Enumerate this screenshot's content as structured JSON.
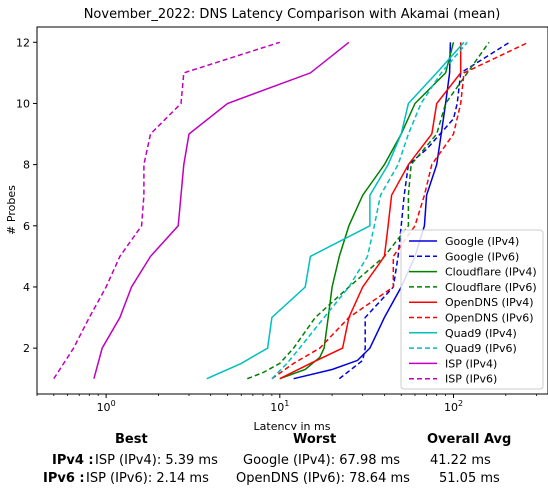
{
  "chart_data": {
    "type": "line",
    "title": "November_2022: DNS Latency Comparison with Akamai (mean)",
    "xlabel": "Latency in ms",
    "ylabel": "# Probes",
    "xscale": "log",
    "xlim": [
      0.4,
      350
    ],
    "ylim": [
      0.5,
      12.5
    ],
    "xticks": [
      {
        "value": 1,
        "label": "10",
        "sup": "0"
      },
      {
        "value": 10,
        "label": "10",
        "sup": "1"
      },
      {
        "value": 100,
        "label": "10",
        "sup": "2"
      }
    ],
    "yticks": [
      2,
      4,
      6,
      8,
      10,
      12
    ],
    "legend_placement": "lower-right",
    "series": [
      {
        "name": "Google (IPv4)",
        "color": "#0000dd",
        "dash": "solid",
        "points": [
          [
            12,
            1
          ],
          [
            20,
            1.3
          ],
          [
            28,
            1.6
          ],
          [
            33,
            2
          ],
          [
            40,
            3
          ],
          [
            50,
            4
          ],
          [
            60,
            5
          ],
          [
            68,
            6
          ],
          [
            70,
            7
          ],
          [
            80,
            8
          ],
          [
            85,
            9
          ],
          [
            90,
            10
          ],
          [
            95,
            11
          ],
          [
            96,
            12
          ]
        ]
      },
      {
        "name": "Google (IPv6)",
        "color": "#0000dd",
        "dash": "dashed",
        "points": [
          [
            22,
            1
          ],
          [
            30,
            1.6
          ],
          [
            31,
            2
          ],
          [
            31,
            3
          ],
          [
            45,
            4
          ],
          [
            48,
            5
          ],
          [
            50,
            6
          ],
          [
            52,
            7
          ],
          [
            55,
            8
          ],
          [
            70,
            8.5
          ],
          [
            100,
            9.5
          ],
          [
            105,
            10
          ],
          [
            110,
            11
          ],
          [
            210,
            12
          ]
        ]
      },
      {
        "name": "Cloudflare (IPv4)",
        "color": "#008000",
        "dash": "solid",
        "points": [
          [
            10,
            1
          ],
          [
            14,
            1.3
          ],
          [
            17,
            1.7
          ],
          [
            18,
            2
          ],
          [
            19,
            3
          ],
          [
            20,
            4
          ],
          [
            22,
            5
          ],
          [
            25,
            6
          ],
          [
            30,
            7
          ],
          [
            40,
            8
          ],
          [
            50,
            9
          ],
          [
            60,
            10
          ],
          [
            90,
            11
          ],
          [
            100,
            12
          ]
        ]
      },
      {
        "name": "Cloudflare (IPv6)",
        "color": "#008000",
        "dash": "dashed",
        "points": [
          [
            6.5,
            1
          ],
          [
            8,
            1.2
          ],
          [
            10,
            1.5
          ],
          [
            12,
            2
          ],
          [
            16,
            3
          ],
          [
            25,
            4
          ],
          [
            40,
            5
          ],
          [
            55,
            6
          ],
          [
            55,
            7
          ],
          [
            57,
            8
          ],
          [
            80,
            9
          ],
          [
            90,
            10
          ],
          [
            120,
            11
          ],
          [
            160,
            12
          ]
        ]
      },
      {
        "name": "OpenDNS (IPv4)",
        "color": "#ff0000",
        "dash": "solid",
        "points": [
          [
            10,
            1
          ],
          [
            15,
            1.5
          ],
          [
            23,
            2
          ],
          [
            25,
            3
          ],
          [
            30,
            4
          ],
          [
            40,
            5
          ],
          [
            42,
            6
          ],
          [
            44,
            7
          ],
          [
            55,
            8
          ],
          [
            75,
            9
          ],
          [
            80,
            10
          ],
          [
            110,
            11
          ],
          [
            110,
            12
          ]
        ]
      },
      {
        "name": "OpenDNS (IPv6)",
        "color": "#ff0000",
        "dash": "dashed",
        "points": [
          [
            9,
            1
          ],
          [
            12,
            1.5
          ],
          [
            17,
            2
          ],
          [
            25,
            3
          ],
          [
            45,
            4
          ],
          [
            45,
            5
          ],
          [
            60,
            6
          ],
          [
            68,
            7
          ],
          [
            75,
            8
          ],
          [
            100,
            9
          ],
          [
            110,
            10
          ],
          [
            115,
            11
          ],
          [
            270,
            12
          ]
        ]
      },
      {
        "name": "Quad9 (IPv4)",
        "color": "#00bfbf",
        "dash": "solid",
        "points": [
          [
            3.8,
            1
          ],
          [
            6,
            1.5
          ],
          [
            8.5,
            2
          ],
          [
            9,
            3
          ],
          [
            14,
            4
          ],
          [
            15,
            5
          ],
          [
            33,
            6
          ],
          [
            33,
            7
          ],
          [
            42,
            8
          ],
          [
            50,
            9
          ],
          [
            55,
            10
          ],
          [
            80,
            11
          ],
          [
            115,
            12
          ]
        ]
      },
      {
        "name": "Quad9 (IPv6)",
        "color": "#00bfbf",
        "dash": "dashed",
        "points": [
          [
            9,
            1
          ],
          [
            11,
            1.5
          ],
          [
            13,
            2
          ],
          [
            18,
            3
          ],
          [
            25,
            4
          ],
          [
            32,
            5
          ],
          [
            35,
            6
          ],
          [
            38,
            7
          ],
          [
            48,
            8
          ],
          [
            55,
            9
          ],
          [
            65,
            10
          ],
          [
            85,
            11
          ],
          [
            120,
            12
          ]
        ]
      },
      {
        "name": "ISP (IPv4)",
        "color": "#bf00bf",
        "dash": "solid",
        "points": [
          [
            0.85,
            1
          ],
          [
            0.95,
            2
          ],
          [
            1.2,
            3
          ],
          [
            1.4,
            4
          ],
          [
            1.8,
            5
          ],
          [
            2.6,
            6
          ],
          [
            2.7,
            7
          ],
          [
            2.8,
            8
          ],
          [
            3,
            9
          ],
          [
            5,
            10
          ],
          [
            15,
            11
          ],
          [
            25,
            12
          ]
        ]
      },
      {
        "name": "ISP (IPv6)",
        "color": "#bf00bf",
        "dash": "dashed",
        "points": [
          [
            0.5,
            1
          ],
          [
            0.65,
            2
          ],
          [
            0.8,
            3
          ],
          [
            1,
            4
          ],
          [
            1.2,
            5
          ],
          [
            1.6,
            6
          ],
          [
            1.65,
            7
          ],
          [
            1.65,
            8
          ],
          [
            1.8,
            9
          ],
          [
            2.7,
            10
          ],
          [
            2.8,
            11
          ],
          [
            10,
            12
          ]
        ]
      }
    ]
  },
  "summary": {
    "headers": {
      "best": "Best",
      "worst": "Worst",
      "avg": "Overall Avg"
    },
    "rows": [
      {
        "label": "IPv4 :",
        "best": "ISP (IPv4): 5.39 ms",
        "worst": "Google (IPv4): 67.98 ms",
        "avg": "41.22 ms"
      },
      {
        "label": "IPv6 :",
        "best": "ISP (IPv6): 2.14 ms",
        "worst": "OpenDNS (IPv6): 78.64 ms",
        "avg": "51.05 ms"
      }
    ]
  }
}
